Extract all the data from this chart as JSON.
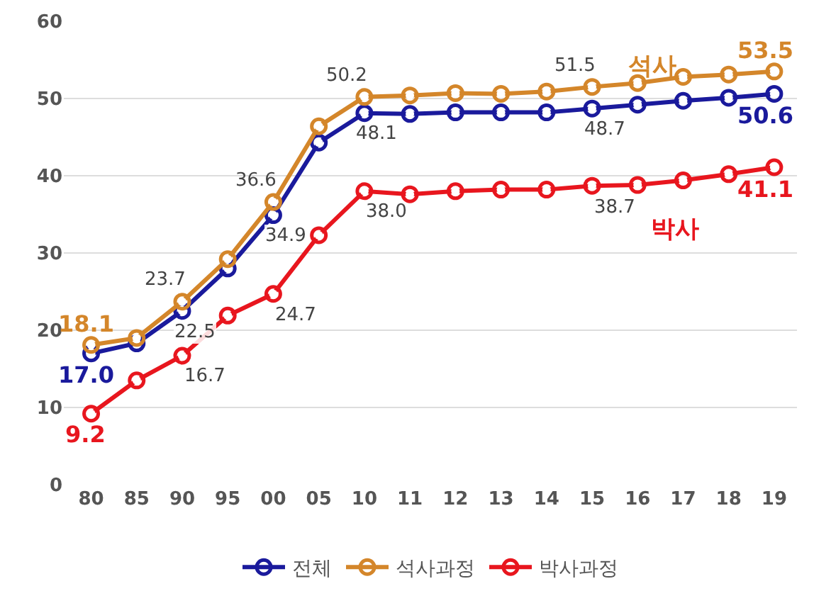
{
  "chart_data": {
    "type": "line",
    "categories": [
      "80",
      "85",
      "90",
      "95",
      "00",
      "05",
      "10",
      "11",
      "12",
      "13",
      "14",
      "15",
      "16",
      "17",
      "18",
      "19"
    ],
    "series": [
      {
        "name": "전체",
        "color": "#1a1a9c",
        "values": [
          17.0,
          18.3,
          22.5,
          28.0,
          34.9,
          44.3,
          48.1,
          48.0,
          48.2,
          48.2,
          48.2,
          48.7,
          49.2,
          49.7,
          50.1,
          50.6
        ],
        "value_labels": [
          "17.0",
          null,
          "22.5",
          null,
          "34.9",
          null,
          "48.1",
          null,
          null,
          null,
          null,
          "48.7",
          null,
          null,
          null,
          "50.6"
        ]
      },
      {
        "name": "석사과정",
        "color": "#d4862a",
        "values": [
          18.1,
          19.0,
          23.7,
          29.2,
          36.6,
          46.4,
          50.2,
          50.4,
          50.7,
          50.6,
          50.9,
          51.5,
          52.0,
          52.8,
          53.1,
          53.5
        ],
        "value_labels": [
          "18.1",
          null,
          "23.7",
          null,
          "36.6",
          null,
          "50.2",
          null,
          null,
          null,
          null,
          "51.5",
          null,
          null,
          null,
          "53.5"
        ]
      },
      {
        "name": "박사과정",
        "color": "#e8161e",
        "values": [
          9.2,
          13.5,
          16.7,
          21.9,
          24.7,
          32.3,
          38.0,
          37.6,
          38.0,
          38.2,
          38.2,
          38.7,
          38.8,
          39.4,
          40.2,
          41.1
        ],
        "value_labels": [
          "9.2",
          null,
          "16.7",
          null,
          "24.7",
          null,
          "38.0",
          null,
          null,
          null,
          null,
          "38.7",
          null,
          null,
          null,
          "41.1"
        ]
      }
    ],
    "annotations": [
      "석사",
      "박사"
    ],
    "ylim": [
      0,
      60
    ],
    "yticks": [
      0,
      10,
      20,
      30,
      40,
      50,
      60
    ],
    "grid": "y",
    "legend": "bottom",
    "marker": "circle",
    "line_style": "solid"
  }
}
